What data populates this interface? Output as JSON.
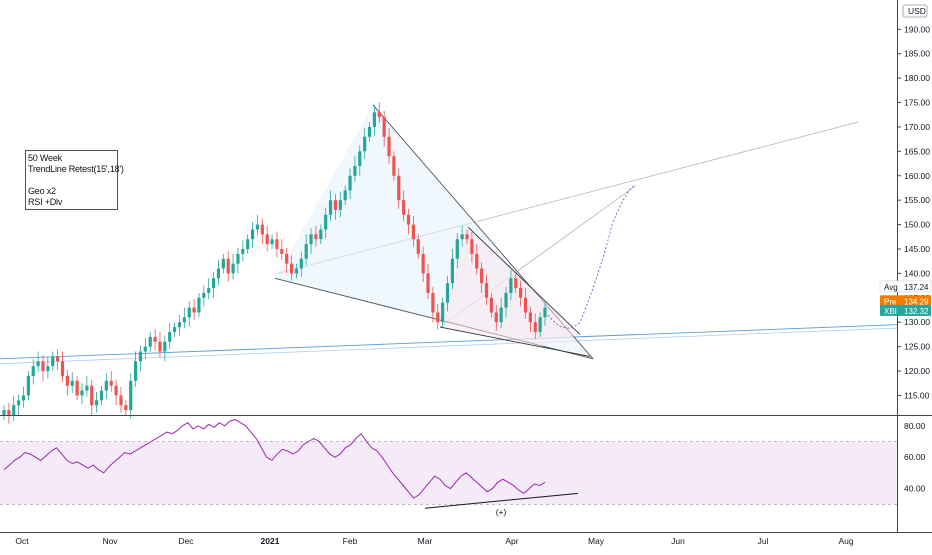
{
  "chart_data": {
    "type": "candlestick",
    "currency_label": "USD",
    "price_axis": {
      "range": [
        111,
        196
      ],
      "ticks": [
        "115.00",
        "120.00",
        "125.00",
        "130.00",
        "135.00",
        "140.00",
        "145.00",
        "150.00",
        "155.00",
        "160.00",
        "165.00",
        "170.00",
        "175.00",
        "180.00",
        "185.00",
        "190.00"
      ]
    },
    "time_axis": {
      "labels": [
        "Oct",
        "Nov",
        "Dec",
        "2021",
        "Feb",
        "Mar",
        "Apr",
        "May",
        "Jun",
        "Jul",
        "Aug"
      ]
    },
    "price_tags": [
      {
        "label": "Avg",
        "value": "137.24",
        "color": "#ffffff",
        "text_color": "#131722"
      },
      {
        "label": "Pre",
        "value": "134.29",
        "color": "#f57c00",
        "text_color": "#ffffff"
      },
      {
        "label": "XBI",
        "value": "132.32",
        "color": "#26a69a",
        "text_color": "#ffffff"
      }
    ],
    "note_lines": [
      "50 Week",
      "TrendLine Retest(15',18')",
      "",
      "Geo x2",
      "RSI +Dlv"
    ],
    "candles_close": [
      112,
      111,
      113,
      114,
      115,
      119,
      121,
      122,
      120,
      121,
      123,
      122,
      119,
      117,
      118,
      115,
      116,
      117,
      113,
      114,
      116,
      118,
      117,
      115,
      113,
      112,
      118,
      122,
      124,
      125,
      127,
      126,
      124,
      126,
      128,
      129,
      130,
      131,
      133,
      132,
      135,
      136,
      137,
      139,
      141,
      143,
      140,
      142,
      144,
      145,
      147,
      149,
      150,
      148,
      146,
      147,
      145,
      144,
      142,
      140,
      141,
      143,
      146,
      148,
      147,
      149,
      152,
      155,
      153,
      155,
      157,
      160,
      162,
      165,
      168,
      170,
      173,
      172,
      168,
      164,
      160,
      155,
      152,
      150,
      147,
      144,
      140,
      136,
      132,
      130,
      134,
      138,
      143,
      147,
      148,
      147,
      144,
      141,
      138,
      135,
      132,
      130,
      133,
      136,
      139,
      137,
      135,
      132,
      130,
      128,
      131,
      133
    ],
    "annotations": [
      "(+)"
    ],
    "colors": {
      "up": "#26a69a",
      "down": "#ef5350",
      "rsi": "#9c27b0",
      "rsi_band": "#f3e5f5",
      "trendline": "#5b9bd5",
      "pattern_fill": "#e3f2fd"
    },
    "rsi": {
      "ticks": [
        "80.00",
        "60.00",
        "40.00"
      ],
      "range": [
        20,
        85
      ],
      "upper": 70,
      "lower": 30,
      "values": [
        52,
        55,
        58,
        60,
        63,
        62,
        60,
        58,
        61,
        64,
        66,
        62,
        58,
        56,
        57,
        55,
        53,
        55,
        52,
        50,
        54,
        57,
        60,
        63,
        62,
        64,
        66,
        68,
        70,
        72,
        74,
        76,
        75,
        77,
        80,
        82,
        78,
        80,
        78,
        81,
        79,
        82,
        80,
        83,
        84,
        82,
        80,
        76,
        72,
        66,
        60,
        58,
        62,
        65,
        64,
        62,
        64,
        68,
        70,
        72,
        70,
        66,
        62,
        60,
        62,
        66,
        68,
        72,
        75,
        70,
        66,
        64,
        60,
        55,
        50,
        46,
        42,
        38,
        34,
        36,
        40,
        44,
        48,
        46,
        42,
        40,
        44,
        48,
        50,
        47,
        44,
        41,
        38,
        40,
        44,
        46,
        44,
        42,
        39,
        37,
        40,
        43,
        42,
        44
      ]
    }
  }
}
